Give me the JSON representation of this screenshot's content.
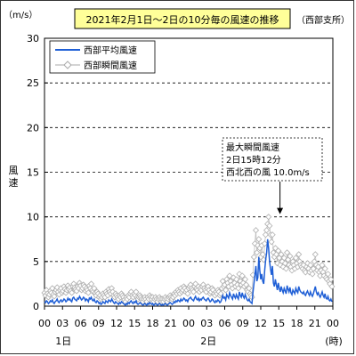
{
  "chart_data": {
    "type": "line",
    "title": "2021年2月1日～2日の10分毎の風速の推移",
    "station": "（西部支所）",
    "yunit": "（m/s）",
    "ylabel": "風速",
    "ylim": [
      0,
      30
    ],
    "yticks": [
      0,
      5,
      10,
      15,
      20,
      25,
      30
    ],
    "xunit": "(時)",
    "xticks": [
      "00",
      "03",
      "06",
      "09",
      "12",
      "15",
      "18",
      "21",
      "00",
      "03",
      "06",
      "09",
      "12",
      "15",
      "18",
      "21",
      "00"
    ],
    "day_labels": [
      "1日",
      "2日"
    ],
    "legend": [
      "西部平均風速",
      "西部瞬間風速"
    ],
    "annotation": {
      "lines": [
        "最大瞬間風速",
        "2日15時12分",
        "西北西の風 10.0m/s"
      ],
      "x_hour": 39.2,
      "y": 10.0
    },
    "series": [
      {
        "name": "西部平均風速",
        "color": "#1f5fd6",
        "values": [
          0.5,
          0.4,
          0.6,
          0.5,
          0.3,
          0.4,
          0.6,
          0.5,
          0.7,
          0.4,
          0.3,
          0.5,
          0.6,
          0.8,
          0.5,
          0.4,
          0.6,
          0.7,
          0.5,
          0.6,
          0.8,
          0.7,
          0.5,
          0.6,
          0.9,
          0.7,
          0.8,
          0.6,
          0.5,
          0.9,
          1.0,
          0.8,
          0.7,
          0.6,
          0.9,
          0.8,
          1.1,
          0.9,
          0.7,
          0.8,
          1.0,
          0.9,
          0.6,
          0.8,
          0.7,
          0.5,
          0.9,
          0.8,
          1.0,
          0.7,
          0.6,
          0.8,
          0.5,
          0.4,
          0.6,
          0.5,
          0.3,
          0.4,
          0.2,
          0.3,
          0.5,
          0.4,
          0.3,
          0.6,
          0.5,
          0.4,
          0.7,
          0.6,
          0.5,
          0.8,
          0.6,
          0.4,
          0.3,
          0.5,
          0.4,
          0.3,
          0.2,
          0.4,
          0.3,
          0.5,
          0.4,
          0.3,
          0.2,
          0.1,
          0.3,
          0.2,
          0.4,
          0.3,
          0.5,
          0.6,
          0.4,
          0.3,
          0.5,
          0.4,
          0.6,
          0.3,
          0.2,
          0.3,
          0.4,
          0.3,
          0.2,
          0.1,
          0.2,
          0.3,
          0.2,
          0.1,
          0.3,
          0.2,
          0.4,
          0.3,
          0.2,
          0.3,
          0.1,
          0.2,
          0.3,
          0.2,
          0.1,
          0.2,
          0.3,
          0.2,
          0.1,
          0.2,
          0.1,
          0.2,
          0.3,
          0.2,
          0.1,
          0.2,
          0.3,
          0.4,
          0.3,
          0.2,
          0.3,
          0.5,
          0.4,
          0.6,
          0.5,
          0.7,
          0.6,
          0.5,
          0.8,
          0.6,
          0.7,
          0.9,
          0.8,
          0.6,
          0.7,
          0.5,
          0.8,
          0.9,
          1.0,
          0.8,
          0.7,
          0.6,
          0.9,
          1.1,
          0.8,
          0.7,
          0.9,
          0.6,
          0.8,
          0.7,
          0.9,
          1.0,
          0.8,
          0.7,
          0.6,
          0.8,
          0.9,
          0.7,
          0.5,
          0.6,
          0.8,
          0.7,
          0.5,
          0.4,
          0.6,
          0.5,
          0.7,
          0.6,
          0.4,
          0.5,
          0.8,
          1.2,
          0.9,
          1.0,
          0.7,
          1.3,
          1.1,
          0.9,
          1.5,
          1.2,
          1.0,
          0.8,
          1.4,
          1.1,
          0.9,
          1.3,
          1.0,
          0.8,
          1.6,
          1.2,
          1.0,
          1.5,
          1.1,
          0.9,
          1.3,
          1.0,
          0.7,
          0.6,
          0.8,
          0.5,
          0.4,
          0.3,
          1.5,
          2.5,
          3.5,
          4.5,
          2.8,
          3.2,
          5.5,
          4.0,
          3.0,
          3.6,
          2.8,
          2.5,
          4.0,
          5.2,
          6.0,
          7.5,
          6.5,
          5.0,
          4.2,
          3.5,
          4.5,
          2.6,
          2.2,
          3.0,
          2.4,
          1.8,
          2.6,
          2.0,
          1.6,
          2.2,
          1.8,
          1.5,
          2.0,
          1.7,
          1.4,
          2.3,
          1.9,
          1.6,
          2.1,
          1.5,
          1.3,
          1.8,
          1.6,
          1.4,
          2.0,
          1.7,
          1.5,
          2.2,
          1.8,
          1.6,
          1.5,
          1.4,
          1.6,
          1.3,
          1.2,
          1.5,
          1.7,
          1.4,
          1.2,
          1.6,
          1.3,
          1.1,
          1.4,
          1.8,
          2.2,
          1.6,
          1.3,
          1.5,
          1.2,
          1.0,
          1.3,
          1.6,
          1.2,
          1.0,
          1.4,
          0.9,
          0.8,
          1.1,
          0.7,
          0.6,
          0.8,
          0.5
        ]
      },
      {
        "name": "西部瞬間風速",
        "color": "#c8c8c8",
        "values": [
          1.5,
          1.2,
          1.8,
          1.4,
          1.0,
          1.3,
          1.7,
          1.5,
          2.0,
          1.3,
          1.1,
          1.6,
          1.8,
          2.1,
          1.6,
          1.3,
          1.8,
          2.0,
          1.5,
          1.7,
          2.2,
          1.9,
          1.5,
          1.8,
          2.3,
          1.9,
          2.1,
          1.7,
          1.5,
          2.2,
          2.5,
          2.1,
          1.9,
          1.7,
          2.2,
          2.0,
          2.6,
          2.3,
          1.8,
          2.0,
          2.4,
          2.2,
          1.7,
          2.0,
          1.8,
          1.5,
          2.3,
          2.0,
          2.5,
          1.8,
          1.6,
          2.0,
          1.5,
          1.2,
          1.6,
          1.4,
          1.0,
          1.2,
          0.8,
          1.0,
          1.4,
          1.2,
          1.0,
          1.6,
          1.4,
          1.2,
          1.9,
          1.6,
          1.4,
          2.0,
          1.6,
          1.2,
          1.0,
          1.4,
          1.2,
          1.0,
          0.8,
          1.2,
          1.0,
          1.4,
          1.2,
          1.0,
          0.7,
          0.5,
          1.0,
          0.8,
          1.2,
          1.0,
          1.4,
          1.6,
          1.2,
          1.0,
          1.4,
          1.2,
          1.6,
          1.0,
          0.8,
          1.0,
          1.2,
          1.0,
          0.8,
          0.5,
          0.8,
          1.0,
          0.8,
          0.5,
          1.0,
          0.8,
          1.2,
          1.0,
          0.8,
          1.0,
          0.5,
          0.8,
          1.0,
          0.8,
          0.5,
          0.8,
          1.0,
          0.8,
          0.5,
          0.8,
          0.5,
          0.8,
          1.0,
          0.8,
          0.5,
          0.8,
          1.0,
          1.2,
          1.0,
          0.8,
          1.0,
          1.4,
          1.2,
          1.6,
          1.4,
          1.8,
          1.6,
          1.4,
          2.0,
          1.6,
          1.8,
          2.2,
          2.0,
          1.6,
          1.8,
          1.4,
          2.0,
          2.2,
          2.4,
          2.0,
          1.8,
          1.6,
          2.2,
          2.5,
          2.0,
          1.8,
          2.2,
          1.6,
          2.0,
          1.8,
          2.2,
          2.4,
          2.0,
          1.8,
          1.6,
          2.0,
          2.2,
          1.8,
          1.4,
          1.6,
          2.0,
          1.8,
          1.4,
          1.2,
          1.6,
          1.4,
          1.8,
          1.6,
          1.2,
          1.4,
          2.0,
          2.8,
          2.2,
          2.4,
          1.8,
          3.0,
          2.6,
          2.2,
          3.4,
          2.8,
          2.4,
          2.0,
          3.2,
          2.6,
          2.2,
          3.0,
          2.4,
          2.0,
          3.6,
          2.8,
          2.4,
          3.4,
          2.6,
          2.2,
          3.0,
          2.4,
          1.8,
          1.6,
          2.0,
          1.4,
          1.2,
          1.0,
          3.5,
          5.5,
          7.0,
          8.5,
          6.0,
          6.8,
          7.5,
          6.5,
          5.5,
          6.8,
          5.8,
          5.2,
          7.0,
          8.0,
          8.5,
          9.2,
          10.0,
          9.0,
          8.0,
          7.2,
          8.0,
          6.0,
          5.5,
          6.5,
          5.8,
          4.8,
          6.2,
          5.4,
          4.6,
          5.8,
          5.0,
          4.4,
          5.4,
          4.8,
          4.2,
          6.0,
          5.2,
          4.6,
          5.6,
          4.4,
          4.0,
          5.0,
          4.6,
          4.2,
          5.4,
          4.8,
          4.4,
          5.8,
          5.0,
          4.6,
          4.4,
          4.2,
          4.6,
          4.0,
          3.8,
          4.4,
          4.8,
          4.2,
          3.8,
          4.6,
          4.0,
          3.6,
          4.2,
          5.0,
          5.8,
          4.6,
          4.0,
          4.4,
          3.8,
          3.4,
          4.0,
          4.6,
          3.8,
          3.4,
          4.2,
          3.2,
          3.0,
          3.6,
          2.8,
          2.5,
          3.0,
          2.2
        ]
      }
    ]
  }
}
